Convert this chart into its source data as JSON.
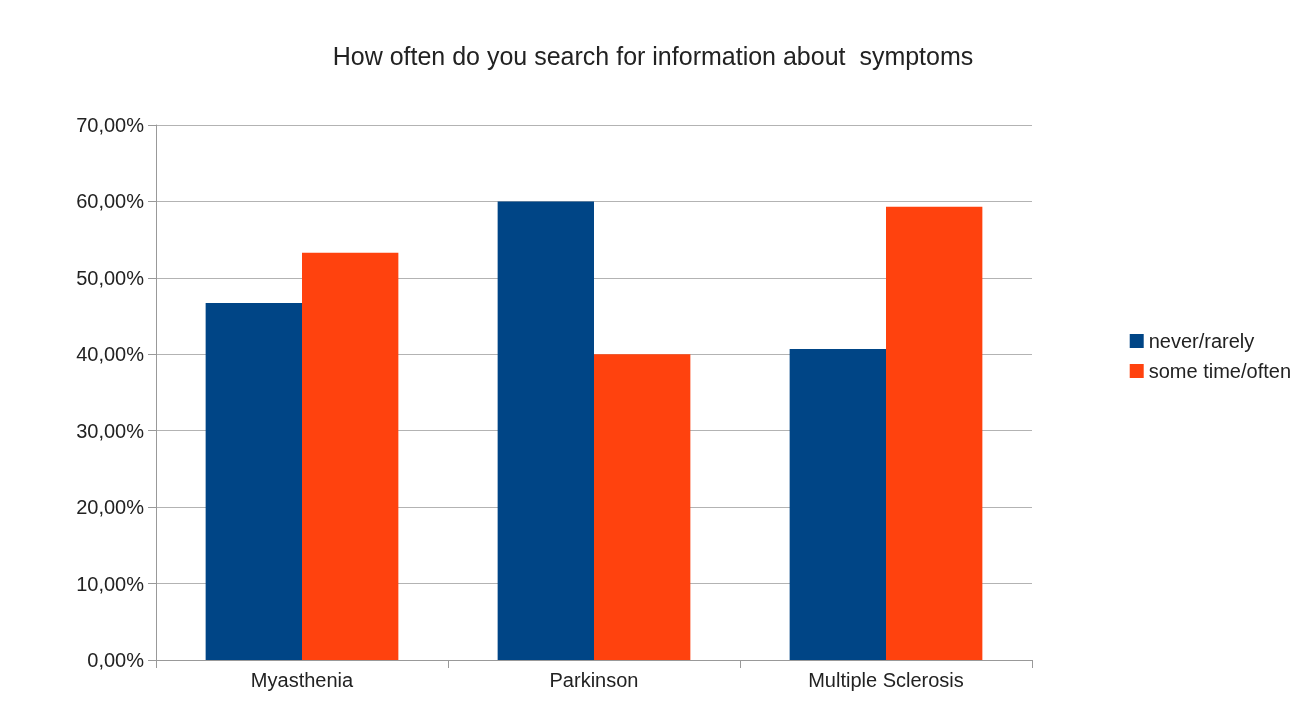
{
  "chart_data": {
    "type": "bar",
    "title": "How often do you search for information about  symptoms",
    "categories": [
      "Myasthenia",
      "Parkinson",
      "Multiple Sclerosis"
    ],
    "series": [
      {
        "name": "never/rarely",
        "color": "#004586",
        "values": [
          46.7,
          60,
          40.7
        ]
      },
      {
        "name": "some time/often",
        "color": "#ff420e",
        "values": [
          53.3,
          40,
          59.3
        ]
      }
    ],
    "ylim": [
      0,
      70
    ],
    "yticks": [
      {
        "value": 0,
        "label": "0,00%"
      },
      {
        "value": 10,
        "label": "10,00%"
      },
      {
        "value": 20,
        "label": "20,00%"
      },
      {
        "value": 30,
        "label": "30,00%"
      },
      {
        "value": 40,
        "label": "40,00%"
      },
      {
        "value": 50,
        "label": "50,00%"
      },
      {
        "value": 60,
        "label": "60,00%"
      },
      {
        "value": 70,
        "label": "70,00%"
      }
    ],
    "grid": "y",
    "legend": "right"
  }
}
